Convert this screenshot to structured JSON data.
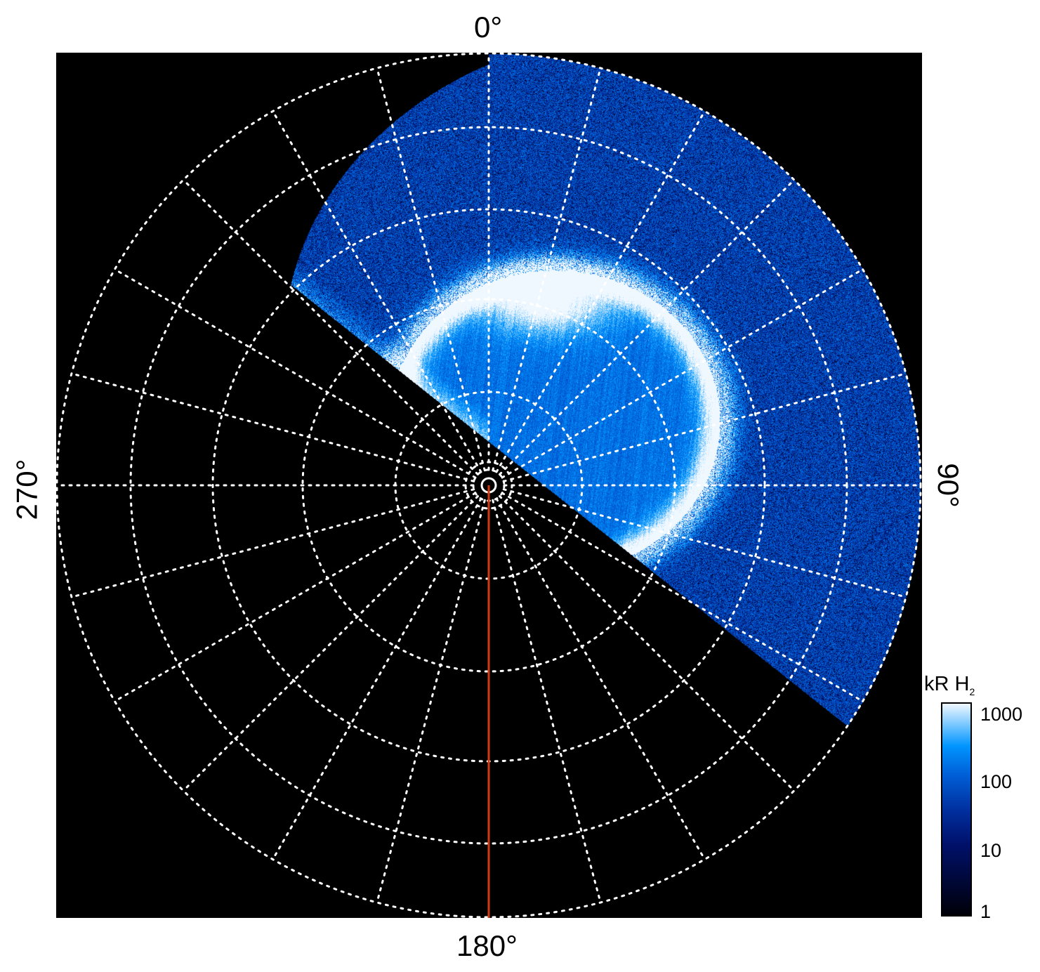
{
  "chart_data": {
    "type": "heatmap",
    "projection": "polar",
    "angle_labels": {
      "top": "0°",
      "right": "90°",
      "bottom": "180°",
      "left": "270°"
    },
    "meridian_spacing_deg": 15,
    "colorbar": {
      "title": "kR H",
      "title_subscript": "2",
      "scale": "log",
      "range": [
        1,
        1000
      ],
      "ticks": [
        "1",
        "10",
        "100",
        "1000"
      ],
      "colors": [
        "#000008",
        "#00106a",
        "#0030a0",
        "#0060d8",
        "#0095ff",
        "#f0f8ff"
      ]
    },
    "marker_line": {
      "angle_deg": 180,
      "color": "#d03a10"
    },
    "grid": true,
    "background": "#000000"
  }
}
